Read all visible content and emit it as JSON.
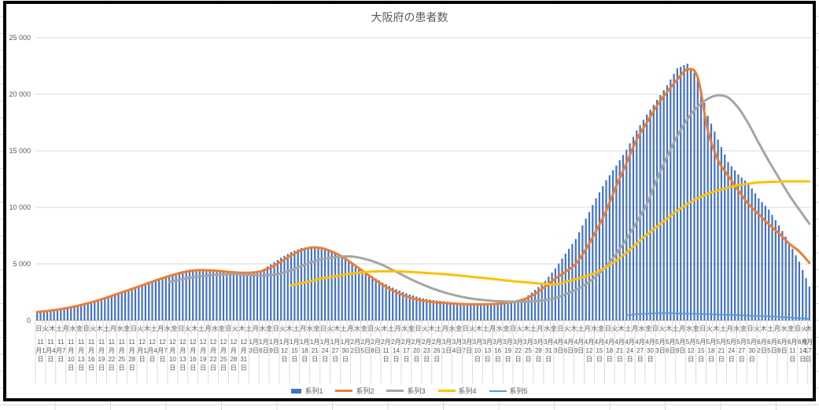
{
  "chart_data": {
    "type": "combo",
    "title": "大阪府の患者数",
    "ylabel": "",
    "xlabel": "",
    "ylim": [
      0,
      25000
    ],
    "y_step": 5000,
    "y_ticks": [
      "0",
      "5 000",
      "10 000",
      "15 000",
      "20 000",
      "25 000"
    ],
    "grid": true,
    "legend_position": "bottom",
    "x_axis": {
      "days_total": 229,
      "weekday_cycle": [
        "日",
        "火",
        "木",
        "土",
        "月",
        "水",
        "金"
      ],
      "weekday_label_interval_days": 2,
      "weekday_label_count": 115,
      "date_label_interval_days": 3,
      "date_labels": [
        "11月1日",
        "11月4日",
        "11月7日",
        "11月10日",
        "11月13日",
        "11月16日",
        "11月19日",
        "11月22日",
        "11月25日",
        "11月28日",
        "12月1日",
        "12月4日",
        "12月7日",
        "12月10日",
        "12月13日",
        "12月16日",
        "12月19日",
        "12月22日",
        "12月25日",
        "12月28日",
        "12月31日",
        "1月3日",
        "1月6日",
        "1月9日",
        "1月12日",
        "1月15日",
        "1月18日",
        "1月21日",
        "1月24日",
        "1月27日",
        "1月30日",
        "2月2日",
        "2月5日",
        "2月8日",
        "2月11日",
        "2月14日",
        "2月17日",
        "2月20日",
        "2月23日",
        "2月26日",
        "3月1日",
        "3月4日",
        "3月7日",
        "3月10日",
        "3月13日",
        "3月16日",
        "3月19日",
        "3月22日",
        "3月25日",
        "3月28日",
        "3月31日",
        "4月3日",
        "4月6日",
        "4月9日",
        "4月12日",
        "4月15日",
        "4月18日",
        "4月21日",
        "4月24日",
        "4月27日",
        "4月30日",
        "5月3日",
        "5月6日",
        "5月9日",
        "5月12日",
        "5月15日",
        "5月18日",
        "5月21日",
        "5月24日",
        "5月27日",
        "5月30日",
        "6月2日",
        "6月5日",
        "6月8日",
        "6月11日",
        "6月14日",
        "6月17日"
      ]
    },
    "values_note": "values estimated from gridlines at each labeled 3-day tick; daily bars interpolated between ticks",
    "series": [
      {
        "name": "系列1",
        "type": "bar",
        "color": "#4472C4",
        "values": [
          750,
          870,
          1000,
          1150,
          1350,
          1550,
          1800,
          2100,
          2400,
          2700,
          3000,
          3300,
          3650,
          3950,
          4300,
          4500,
          4550,
          4450,
          4300,
          4150,
          4100,
          4100,
          4400,
          4950,
          5550,
          6050,
          6400,
          6550,
          6400,
          6100,
          5650,
          5100,
          4500,
          3900,
          3350,
          2900,
          2500,
          2200,
          1950,
          1800,
          1700,
          1600,
          1500,
          1450,
          1450,
          1500,
          1600,
          1750,
          2000,
          2700,
          3500,
          4600,
          5900,
          7200,
          9000,
          10800,
          12400,
          13700,
          15100,
          16800,
          18200,
          19500,
          20800,
          22300,
          22700,
          21500,
          18100,
          16000,
          14000,
          12900,
          12100,
          10800,
          9800,
          8400,
          6900,
          5200,
          3000
        ]
      },
      {
        "name": "系列2",
        "type": "line",
        "color": "#ED7D31",
        "stroke_width": 3,
        "values": [
          750,
          840,
          960,
          1110,
          1300,
          1520,
          1780,
          2070,
          2380,
          2690,
          3000,
          3320,
          3640,
          3930,
          4180,
          4360,
          4450,
          4440,
          4370,
          4280,
          4220,
          4230,
          4350,
          4700,
          5200,
          5750,
          6200,
          6450,
          6400,
          6100,
          5650,
          5050,
          4400,
          3750,
          3150,
          2650,
          2250,
          1950,
          1750,
          1620,
          1540,
          1490,
          1450,
          1430,
          1430,
          1460,
          1530,
          1650,
          1900,
          2350,
          3000,
          3700,
          4300,
          5000,
          6300,
          7900,
          9700,
          11900,
          13900,
          16000,
          17500,
          19000,
          20200,
          21300,
          22200,
          21500,
          16800,
          14200,
          12800,
          11500,
          10300,
          9400,
          8500,
          7700,
          6800,
          6100,
          5100
        ]
      },
      {
        "name": "系列3",
        "type": "line",
        "color": "#A5A5A5",
        "stroke_width": 3,
        "values": [
          null,
          null,
          null,
          null,
          null,
          null,
          null,
          null,
          null,
          null,
          null,
          null,
          null,
          3400,
          3600,
          3780,
          3900,
          4000,
          4060,
          4090,
          4070,
          4020,
          3980,
          4000,
          4150,
          4450,
          4800,
          5150,
          5400,
          5570,
          5650,
          5650,
          5500,
          5250,
          4900,
          4450,
          4000,
          3550,
          3150,
          2800,
          2500,
          2250,
          2050,
          1900,
          1800,
          1720,
          1680,
          1650,
          1650,
          1700,
          1800,
          2000,
          2300,
          2700,
          3200,
          3900,
          4800,
          5900,
          7200,
          8700,
          10300,
          12500,
          14500,
          16300,
          17800,
          18900,
          19600,
          19900,
          19700,
          18800,
          17400,
          15700,
          14100,
          12600,
          11100,
          9800,
          8550
        ]
      },
      {
        "name": "系列4",
        "type": "line",
        "color": "#FFC000",
        "stroke_width": 3,
        "values": [
          null,
          null,
          null,
          null,
          null,
          null,
          null,
          null,
          null,
          null,
          null,
          null,
          null,
          null,
          null,
          null,
          null,
          null,
          null,
          null,
          null,
          null,
          null,
          null,
          null,
          3100,
          3300,
          3500,
          3700,
          3850,
          4000,
          4150,
          4250,
          4320,
          4350,
          4350,
          4320,
          4270,
          4220,
          4160,
          4100,
          4020,
          3930,
          3840,
          3750,
          3650,
          3550,
          3460,
          3380,
          3300,
          3230,
          3180,
          3400,
          3650,
          3900,
          4250,
          4700,
          5300,
          6000,
          6800,
          7600,
          8300,
          9000,
          9700,
          10300,
          10800,
          11200,
          11500,
          11750,
          11950,
          12100,
          12200,
          12250,
          12280,
          12300,
          12300,
          12300
        ]
      },
      {
        "name": "系列5",
        "type": "line",
        "color": "#5B9BD5",
        "stroke_width": 2,
        "values": [
          null,
          null,
          null,
          null,
          null,
          null,
          null,
          null,
          null,
          null,
          null,
          null,
          null,
          null,
          null,
          null,
          null,
          null,
          null,
          null,
          null,
          null,
          null,
          null,
          null,
          null,
          null,
          null,
          null,
          null,
          null,
          null,
          null,
          null,
          null,
          null,
          null,
          null,
          null,
          null,
          null,
          null,
          null,
          null,
          null,
          null,
          null,
          null,
          null,
          null,
          null,
          null,
          null,
          null,
          null,
          null,
          null,
          null,
          450,
          550,
          600,
          650,
          650,
          620,
          600,
          580,
          550,
          520,
          500,
          470,
          440,
          400,
          360,
          310,
          260,
          200,
          150
        ]
      }
    ],
    "colors": {
      "gridline": "#D9D9D9",
      "axis_line": "#BFBFBF",
      "text": "#595959",
      "chart_border": "#000000"
    }
  }
}
